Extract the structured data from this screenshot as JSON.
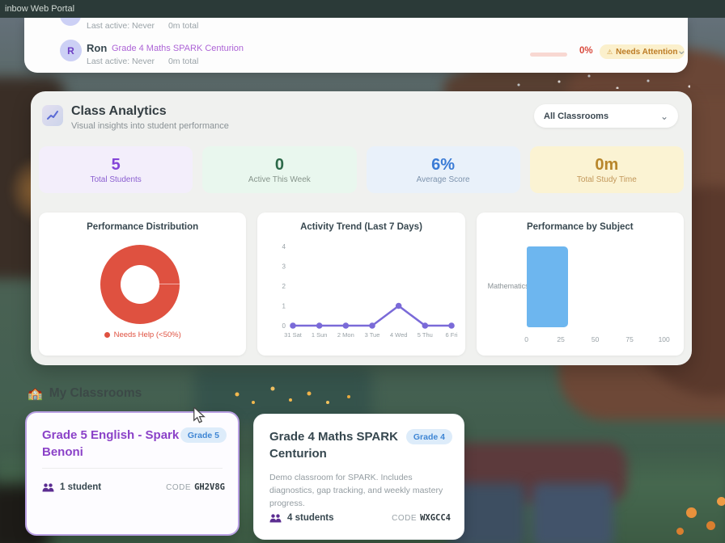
{
  "topbar": {
    "title": "inbow Web Portal"
  },
  "student_list": {
    "partial_row": {
      "last_active": "Last active: Never",
      "total": "0m total"
    },
    "row": {
      "avatar_letter": "R",
      "name": "Ron",
      "classroom": "Grade 4 Maths SPARK Centurion",
      "last_active": "Last active: Never",
      "total": "0m total",
      "score": "0%",
      "badge_icon": "⚠",
      "badge": "Needs Attention"
    }
  },
  "analytics": {
    "title": "Class Analytics",
    "subtitle": "Visual insights into student performance",
    "classroom_filter": "All Classrooms",
    "stats": [
      {
        "value": "5",
        "label": "Total Students",
        "color": "#8444d8",
        "label_color": "#8b5fd0",
        "bg": "#f3eefb"
      },
      {
        "value": "0",
        "label": "Active This Week",
        "color": "#2d6a4a",
        "label_color": "#86948b",
        "bg": "#e9f7ee"
      },
      {
        "value": "6%",
        "label": "Average Score",
        "color": "#3a7bd5",
        "label_color": "#7d93ad",
        "bg": "#e9f1fa"
      },
      {
        "value": "0m",
        "label": "Total Study Time",
        "color": "#b8862b",
        "label_color": "#c2975a",
        "bg": "#fbf3d3"
      }
    ]
  },
  "chart_data": [
    {
      "type": "pie",
      "donut": true,
      "title": "Performance Distribution",
      "labels": [
        "Needs Help (<50%)"
      ],
      "values": [
        100
      ],
      "colors": [
        "#df5140"
      ],
      "legend_position": "bottom"
    },
    {
      "type": "line",
      "title": "Activity Trend (Last 7 Days)",
      "x": [
        "31 Sat",
        "1 Sun",
        "2 Mon",
        "3 Tue",
        "4 Wed",
        "5 Thu",
        "6 Fri"
      ],
      "values": [
        0,
        0,
        0,
        0,
        1,
        0,
        0
      ],
      "ylim": [
        0,
        4
      ],
      "yticks": [
        0,
        1,
        2,
        3,
        4
      ],
      "color": "#7a6ad8",
      "grid": false
    },
    {
      "type": "bar",
      "orientation": "horizontal",
      "title": "Performance by Subject",
      "categories": [
        "Mathematics"
      ],
      "values": [
        30
      ],
      "xlim": [
        0,
        100
      ],
      "xticks": [
        0,
        25,
        50,
        75,
        100
      ],
      "color": "#6db6ef"
    }
  ],
  "classrooms_section": {
    "icon": "🏫",
    "title": "My Classrooms",
    "cards": [
      {
        "title": "Grade 5 English - Spark Benoni",
        "grade_badge": "Grade 5",
        "students": "1 student",
        "code_label": "CODE",
        "code": "GH2V8G"
      },
      {
        "title": "Grade 4 Maths SPARK Centurion",
        "grade_badge": "Grade 4",
        "description": "Demo classroom for SPARK. Includes diagnostics, gap tracking, and weekly mastery progress.",
        "students": "4 students",
        "code_label": "CODE",
        "code": "WXGCC4"
      }
    ]
  },
  "colors": {
    "accent_purple": "#8b42c8",
    "alert_red": "#d94a3d",
    "warning_badge_bg": "#fbf0cc",
    "warning_badge_text": "#bd7c25",
    "donut_red": "#df5140",
    "line_purple": "#7a6ad8",
    "bar_blue": "#6db6ef"
  }
}
